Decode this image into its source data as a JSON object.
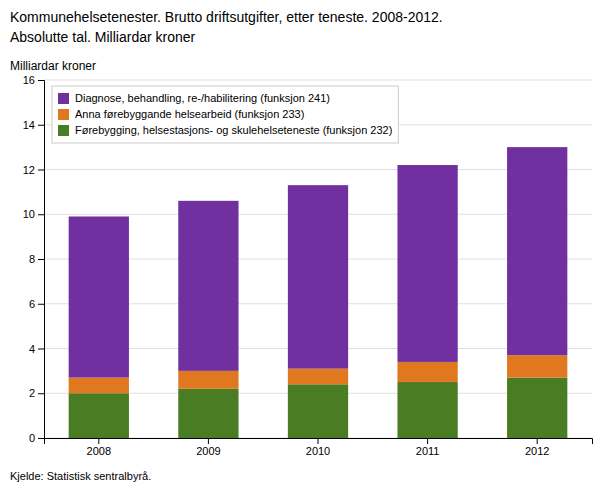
{
  "chart_data": {
    "type": "bar",
    "title": "Kommunehelsetenester. Brutto driftsutgifter, etter teneste. 2008-2012.",
    "subtitle": "Absolutte tal. Milliardar kroner",
    "ylabel": "Milliardar kroner",
    "annotations": [
      "Kjelde: Statistisk sentralbyrå."
    ],
    "categories": [
      "2008",
      "2009",
      "2010",
      "2011",
      "2012"
    ],
    "series": [
      {
        "name": "Førebygging, helsestasjons- og skulehelseteneste (funksjon 232)",
        "color": "#4a7c23",
        "values": [
          2.0,
          2.2,
          2.4,
          2.5,
          2.7
        ]
      },
      {
        "name": "Anna førebyggande helsearbeid (funksjon 233)",
        "color": "#e07820",
        "values": [
          0.7,
          0.8,
          0.7,
          0.9,
          1.0
        ]
      },
      {
        "name": "Diagnose, behandling, re-/habilitering (funksjon 241)",
        "color": "#7030a0",
        "values": [
          7.2,
          7.6,
          8.2,
          8.8,
          9.3
        ]
      }
    ],
    "stacked": true,
    "ylim": [
      0,
      16
    ],
    "yticks": [
      0,
      2,
      4,
      6,
      8,
      10,
      12,
      14,
      16
    ],
    "grid": true,
    "legend": "upper left"
  }
}
